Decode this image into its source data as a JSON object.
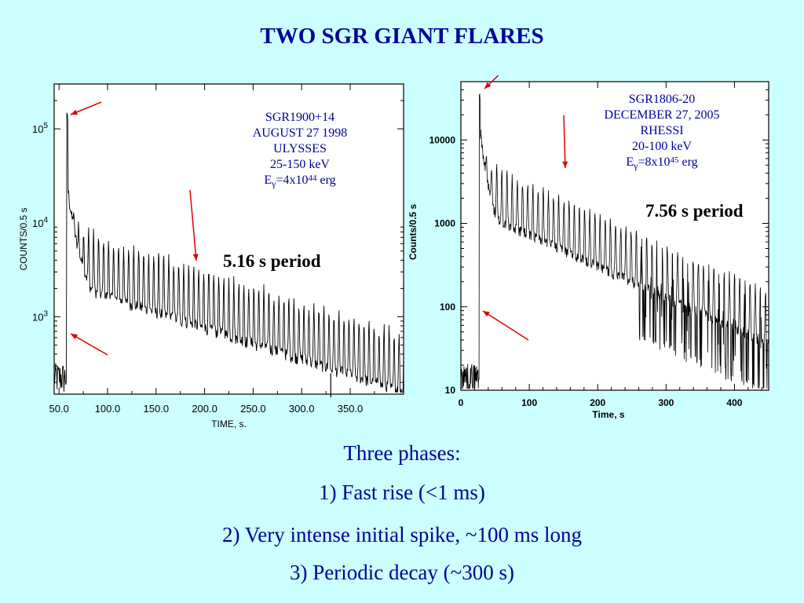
{
  "slide": {
    "title": "TWO SGR GIANT FLARES",
    "phases_heading": "Three phases:",
    "phases": [
      "1) Fast rise (<1 ms)",
      "2) Very intense initial spike, ~100 ms long",
      "3) Periodic decay (~300 s)"
    ]
  },
  "colors": {
    "title": "#000099",
    "arrow": "#dd0000",
    "background": "#ccffff"
  },
  "chart_data": [
    {
      "type": "line",
      "name": "SGR1900+14 light curve",
      "xlabel": "TIME, s.",
      "ylabel": "COUNTS/0.5 s",
      "x_scale": "linear",
      "y_scale": "log",
      "xlim": [
        45,
        405
      ],
      "ylim": [
        150,
        300000
      ],
      "x_ticks": [
        50,
        100,
        150,
        200,
        250,
        300,
        350
      ],
      "x_tick_labels": [
        "50.0",
        "100.0",
        "150.0",
        "200.0",
        "250.0",
        "300.0",
        "350.0"
      ],
      "y_ticks": [
        1000,
        10000,
        100000
      ],
      "y_tick_labels": [
        {
          "base": "10",
          "exp": "3"
        },
        {
          "base": "10",
          "exp": "4"
        },
        {
          "base": "10",
          "exp": "5"
        }
      ],
      "label_lines": [
        "SGR1900+14",
        "AUGUST 27 1998",
        "ULYSSES",
        "25-150 keV"
      ],
      "energy": {
        "prefix": "E",
        "sub": "γ",
        "mid": "=4x10",
        "exp": "44",
        "unit": " erg"
      },
      "period_label": "5.16 s period",
      "period_s": 5.16,
      "onset_time_s": 58,
      "pre_flare_counts": 230,
      "peak_counts": 150000,
      "decay_start_counts": 5000,
      "decay_end_counts": 350,
      "end_time_s": 405
    },
    {
      "type": "line",
      "name": "SGR1806-20 light curve",
      "xlabel": "Time, s",
      "ylabel": "Counts/0.5 s",
      "x_scale": "linear",
      "y_scale": "log",
      "xlim": [
        0,
        450
      ],
      "ylim": [
        10,
        50000
      ],
      "x_ticks": [
        0,
        100,
        200,
        300,
        400
      ],
      "x_tick_labels": [
        "0",
        "100",
        "200",
        "300",
        "400"
      ],
      "y_ticks": [
        10,
        100,
        1000,
        10000
      ],
      "y_tick_labels": [
        "10",
        "100",
        "1000",
        "10000"
      ],
      "label_lines": [
        "SGR1806-20",
        "DECEMBER 27, 2005",
        "RHESSI",
        "20-100 keV"
      ],
      "energy": {
        "prefix": "E",
        "sub": "γ",
        "mid": "=8x10",
        "exp": "45",
        "unit": " erg"
      },
      "period_label": "7.56 s period",
      "period_s": 7.56,
      "onset_time_s": 27,
      "pre_flare_counts": 15,
      "peak_counts": 40000,
      "decay_start_counts": 3000,
      "decay_end_counts": 80,
      "end_time_s": 450
    }
  ]
}
